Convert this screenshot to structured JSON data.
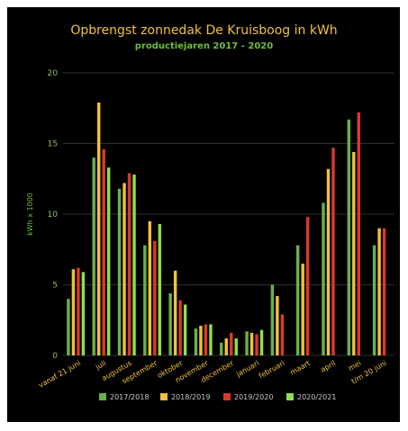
{
  "chart_data": {
    "type": "bar",
    "title": "Opbrengst zonnedak De Kruisboog in kWh",
    "subtitle": "productiejaren 2017 - 2020",
    "ylabel": "kWh x 1000",
    "xlabel": "",
    "ylim": [
      0,
      20
    ],
    "yticks": [
      0,
      5,
      10,
      15,
      20
    ],
    "grid": true,
    "legend_position": "bottom",
    "categories": [
      "vanaf 21 juni",
      "juli",
      "augustus",
      "september",
      "oktober",
      "november",
      "december",
      "januari",
      "februari",
      "maart",
      "april",
      "mei",
      "t/m 20 juni"
    ],
    "series": [
      {
        "name": "2017/2018",
        "color": "#6ab04c",
        "values": [
          4.0,
          14.0,
          11.8,
          7.8,
          4.4,
          1.9,
          0.9,
          1.7,
          5.0,
          7.8,
          10.8,
          16.7,
          7.8
        ]
      },
      {
        "name": "2018/2019",
        "color": "#f0c040",
        "values": [
          6.1,
          17.9,
          12.2,
          9.5,
          6.0,
          2.1,
          1.2,
          1.6,
          4.2,
          6.5,
          13.2,
          14.4,
          9.0
        ]
      },
      {
        "name": "2019/2020",
        "color": "#d93a2b",
        "values": [
          6.2,
          14.6,
          12.9,
          8.1,
          3.9,
          2.2,
          1.6,
          1.5,
          2.9,
          9.8,
          14.7,
          17.2,
          9.0
        ]
      },
      {
        "name": "2020/2021",
        "color": "#8ee04a",
        "values": [
          5.9,
          13.3,
          12.8,
          9.3,
          3.6,
          2.2,
          1.2,
          1.8,
          null,
          null,
          null,
          null,
          null
        ]
      }
    ]
  }
}
